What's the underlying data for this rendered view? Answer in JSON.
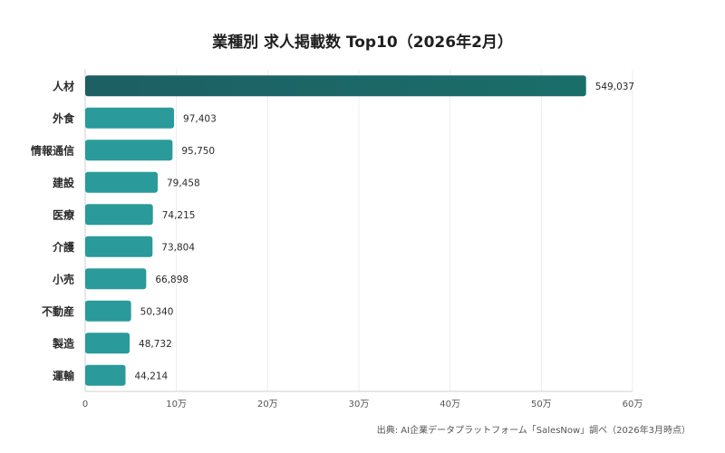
{
  "chart_data": {
    "type": "bar",
    "orientation": "horizontal",
    "title": "業種別 求人掲載数 Top10（2026年2月）",
    "categories": [
      "人材",
      "外食",
      "情報通信",
      "建設",
      "医療",
      "介護",
      "小売",
      "不動産",
      "製造",
      "運輸"
    ],
    "values": [
      549037,
      97403,
      95750,
      79458,
      74215,
      73804,
      66898,
      50340,
      48732,
      44214
    ],
    "value_labels": [
      "549,037",
      "97,403",
      "95,750",
      "79,458",
      "74,215",
      "73,804",
      "66,898",
      "50,340",
      "48,732",
      "44,214"
    ],
    "xlim": [
      0,
      600000
    ],
    "xticks": [
      0,
      100000,
      200000,
      300000,
      400000,
      500000,
      600000
    ],
    "xtick_labels": [
      "0",
      "10万",
      "20万",
      "30万",
      "40万",
      "50万",
      "60万"
    ],
    "grid": "vertical",
    "legend": "none",
    "colors": {
      "top_bar": "#1a6b69",
      "bars": "#2a9a9b",
      "grid": "#ececec",
      "axis": "#cfcfcf"
    },
    "source": "出典: AI企業データプラットフォーム「SalesNow」調べ（2026年3月時点）"
  }
}
